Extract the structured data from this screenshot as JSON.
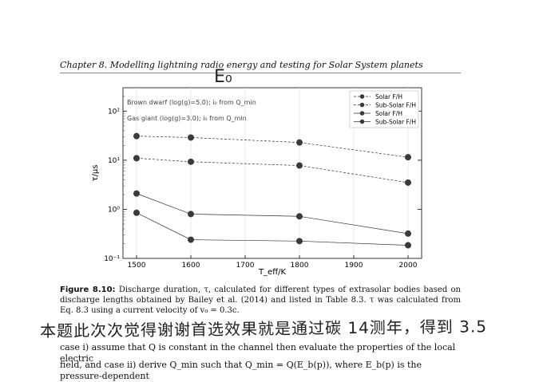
{
  "header": {
    "text": "Chapter 8.  Modelling lightning radio energy and testing for Solar System planets"
  },
  "handwritten_mark": "E₀",
  "chart_data": {
    "type": "line",
    "xlabel": "T_eff/K",
    "ylabel": "τ/μs",
    "yscale": "log",
    "xlim": [
      1475,
      2025
    ],
    "ylim": [
      0.1,
      300
    ],
    "x_ticks": [
      "1500",
      "1600",
      "1700",
      "1800",
      "1900",
      "2000"
    ],
    "y_ticks": [
      "10⁻¹",
      "10⁰",
      "10¹",
      "10²"
    ],
    "annotations": [
      "Brown dwarf (log(g)=5.0); i₀ from Q_min",
      "Gas giant (log(g)=3.0); i₀ from Q_min"
    ],
    "legend": [
      "Solar F/H",
      "Sub-Solar F/H",
      "Solar F/H",
      "Sub-Solar F/H"
    ],
    "legend_position": "top-right",
    "x": [
      1500,
      1600,
      1800,
      2000
    ],
    "series": [
      {
        "name": "Solar F/H",
        "style": "dashed",
        "values": [
          31,
          29,
          23,
          11.5
        ]
      },
      {
        "name": "Sub-Solar F/H",
        "style": "dashed",
        "values": [
          11,
          9.3,
          7.8,
          3.5
        ]
      },
      {
        "name": "Solar F/H",
        "style": "solid",
        "values": [
          2.1,
          0.8,
          0.72,
          0.32
        ]
      },
      {
        "name": "Sub-Solar F/H",
        "style": "solid",
        "values": [
          0.85,
          0.24,
          0.225,
          0.185
        ]
      }
    ]
  },
  "caption": {
    "label": "Figure 8.10:",
    "text": " Discharge duration, τ, calculated for different types of extrasolar bodies based on discharge lengths obtained by Bailey et al. (2014) and listed in Table 8.3. τ was calculated from Eq. 8.3 using a current velocity of v₀ = 0.3c."
  },
  "handwriting": "本题此次次觉得谢谢首选效果就是通过碳 14测年，得到 3.5",
  "body_text": [
    "case i) assume that Q is constant in the channel then evaluate the properties of the local electric",
    "field, and case ii) derive Q_min such that Q_min = Q(E_b(p)), where E_b(p) is the pressure-dependent"
  ]
}
